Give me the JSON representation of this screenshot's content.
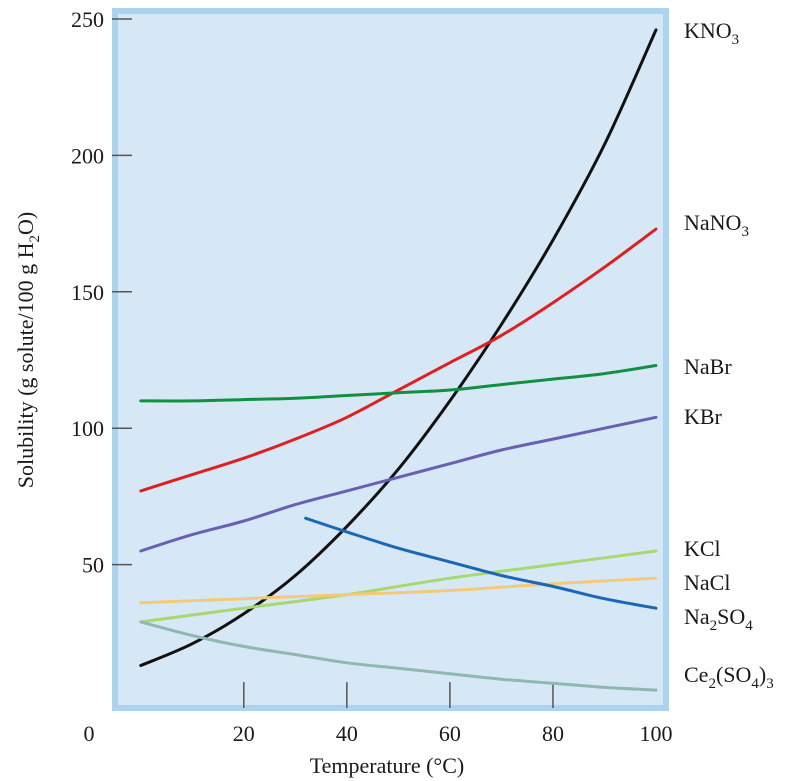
{
  "chart_data": {
    "type": "line",
    "xlabel": "Temperature (°C)",
    "ylabel_parts": [
      "Solubility (g solute/100 g H",
      "2",
      "O)"
    ],
    "xlim": [
      -5,
      100
    ],
    "ylim": [
      0,
      250
    ],
    "x_ticks": [
      0,
      20,
      40,
      60,
      80,
      100
    ],
    "y_ticks": [
      50,
      100,
      150,
      200,
      250
    ],
    "grid": false,
    "legend": "labels at right edge",
    "colors": {
      "plot_bg": "#d6e8f5",
      "frame": "#a9d3ef",
      "axis": "#555555"
    },
    "series": [
      {
        "name": "KNO3",
        "label_parts": [
          [
            "KNO",
            false
          ],
          [
            "3",
            true
          ]
        ],
        "color": "#111111",
        "x": [
          0,
          10,
          20,
          30,
          40,
          50,
          60,
          70,
          80,
          90,
          100
        ],
        "y": [
          13,
          21,
          32,
          46,
          64,
          85,
          110,
          138,
          169,
          204,
          246
        ]
      },
      {
        "name": "NaNO3",
        "label_parts": [
          [
            "NaNO",
            false
          ],
          [
            "3",
            true
          ]
        ],
        "color": "#e02020",
        "x": [
          0,
          10,
          20,
          30,
          40,
          50,
          60,
          70,
          80,
          90,
          100
        ],
        "y": [
          77,
          83,
          89,
          96,
          104,
          114,
          124,
          134,
          146,
          159,
          173
        ]
      },
      {
        "name": "NaBr",
        "label_parts": [
          [
            "NaBr",
            false
          ]
        ],
        "color": "#109040",
        "x": [
          0,
          10,
          20,
          30,
          40,
          50,
          60,
          70,
          80,
          90,
          100
        ],
        "y": [
          110,
          110,
          110.5,
          111,
          112,
          113,
          114,
          116,
          118,
          120,
          123
        ]
      },
      {
        "name": "KBr",
        "label_parts": [
          [
            "KBr",
            false
          ]
        ],
        "color": "#6a5fb5",
        "x": [
          0,
          10,
          20,
          30,
          40,
          50,
          60,
          70,
          80,
          90,
          100
        ],
        "y": [
          55,
          61,
          66,
          72,
          77,
          82,
          87,
          92,
          96,
          100,
          104
        ]
      },
      {
        "name": "KCl",
        "label_parts": [
          [
            "KCl",
            false
          ]
        ],
        "color": "#a8d870",
        "x": [
          0,
          20,
          40,
          60,
          80,
          100
        ],
        "y": [
          29,
          34,
          39,
          45,
          50,
          55
        ]
      },
      {
        "name": "NaCl",
        "label_parts": [
          [
            "NaCl",
            false
          ]
        ],
        "color": "#f6c97a",
        "x": [
          0,
          20,
          40,
          60,
          80,
          100
        ],
        "y": [
          36,
          37.5,
          39,
          40.5,
          43,
          45
        ]
      },
      {
        "name": "Na2SO4",
        "label_parts": [
          [
            "Na",
            false
          ],
          [
            "2",
            true
          ],
          [
            "SO",
            false
          ],
          [
            "4",
            true
          ]
        ],
        "color": "#1a66b8",
        "x": [
          32,
          40,
          50,
          60,
          70,
          80,
          90,
          100
        ],
        "y": [
          67,
          62,
          56,
          51,
          46,
          42,
          37.5,
          34
        ]
      },
      {
        "name": "Ce2(SO4)3",
        "label_parts": [
          [
            "Ce",
            false
          ],
          [
            "2",
            true
          ],
          [
            "(SO",
            false
          ],
          [
            "4",
            true
          ],
          [
            ")",
            false
          ],
          [
            "3",
            true
          ]
        ],
        "color": "#8fb8b0",
        "x": [
          0,
          10,
          20,
          30,
          40,
          50,
          60,
          70,
          80,
          90,
          100
        ],
        "y": [
          29,
          24,
          20,
          17,
          14,
          12,
          10,
          8,
          6.5,
          5,
          4
        ]
      }
    ],
    "origin_label": "0"
  }
}
